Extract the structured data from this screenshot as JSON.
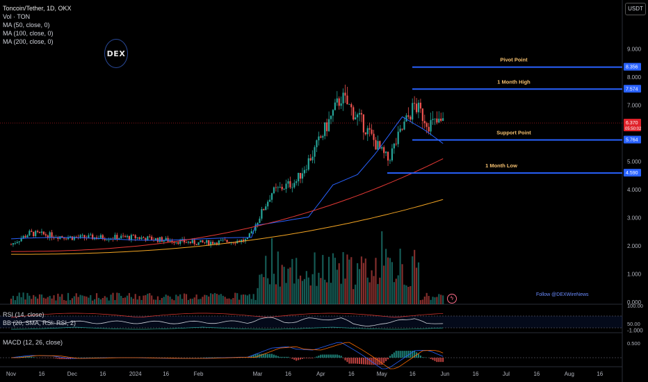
{
  "header": {
    "symbol_line": "Toncoin/Tether, 1D, OKX",
    "indicators": [
      "Vol · TON",
      "MA (50, close, 0)",
      "MA (100, close, 0)",
      "MA (200, close, 0)"
    ]
  },
  "currency_button": "USDT",
  "logo_text": "DEX",
  "watermark": "Follow @DEXWireNews",
  "chart_data": {
    "type": "candlestick",
    "symbol": "Toncoin/Tether",
    "interval": "1D",
    "exchange": "OKX",
    "price_axis": {
      "ticks": [
        "9.000",
        "8.000",
        "7.000",
        "5.000",
        "4.000",
        "3.000",
        "2.000",
        "1.000",
        "0.000",
        "-1.000"
      ],
      "range": [
        -1.0,
        9.0
      ]
    },
    "price_badges": [
      {
        "label": "8.356",
        "color": "#2962ff"
      },
      {
        "label": "7.574",
        "color": "#2962ff"
      },
      {
        "label": "6.370",
        "sub": "05:50:02",
        "color": "#e0222a"
      },
      {
        "label": "5.764",
        "color": "#2962ff"
      },
      {
        "label": "4.590",
        "color": "#2962ff"
      }
    ],
    "horizontal_levels": [
      {
        "name": "Pivot Point",
        "value": 8.356
      },
      {
        "name": "1 Month High",
        "value": 7.574
      },
      {
        "name": "Support Point",
        "value": 5.764
      },
      {
        "name": "1 Month Low",
        "value": 4.59
      }
    ],
    "last_price": 6.37,
    "x_axis_ticks": [
      "Nov",
      "16",
      "Dec",
      "16",
      "2024",
      "16",
      "Feb",
      "Mar",
      "16",
      "Apr",
      "16",
      "May",
      "16",
      "Jun",
      "16",
      "Jul",
      "16",
      "Aug",
      "16"
    ],
    "series_keypoints": [
      {
        "date": "Nov 1",
        "close": 2.05
      },
      {
        "date": "Nov 10",
        "close": 2.45
      },
      {
        "date": "Dec 1",
        "close": 2.3
      },
      {
        "date": "Jan 1",
        "close": 2.3
      },
      {
        "date": "Feb 1",
        "close": 2.1
      },
      {
        "date": "Feb 25",
        "close": 2.2
      },
      {
        "date": "Mar 8",
        "close": 3.9
      },
      {
        "date": "Mar 20",
        "close": 4.3
      },
      {
        "date": "Mar 29",
        "close": 5.4
      },
      {
        "date": "Apr 11",
        "close": 7.3
      },
      {
        "date": "Apr 22",
        "close": 6.3
      },
      {
        "date": "May 1",
        "close": 5.3
      },
      {
        "date": "May 4",
        "close": 5.05
      },
      {
        "date": "May 12",
        "close": 6.3
      },
      {
        "date": "May 17",
        "close": 7.0
      },
      {
        "date": "May 24",
        "close": 6.35
      },
      {
        "date": "May 31",
        "close": 6.37
      }
    ],
    "moving_averages": [
      {
        "name": "MA (50, close, 0)",
        "color": "#2962ff",
        "start": 2.3,
        "end": 6.15
      },
      {
        "name": "MA (100, close, 0)",
        "color": "#e53935",
        "start": 1.8,
        "end": 5.1
      },
      {
        "name": "MA (200, close, 0)",
        "color": "#f5a623",
        "start": 1.7,
        "end": 3.65
      }
    ],
    "rsi": {
      "label": "RSI (14, close)",
      "bb_label": "BB (20, SMA, RSI: RSI, 2)",
      "axis_ticks": [
        "100.00",
        "50.00"
      ]
    },
    "macd": {
      "label": "MACD (12, 26, close)",
      "axis_ticks": [
        "0.500"
      ]
    }
  }
}
